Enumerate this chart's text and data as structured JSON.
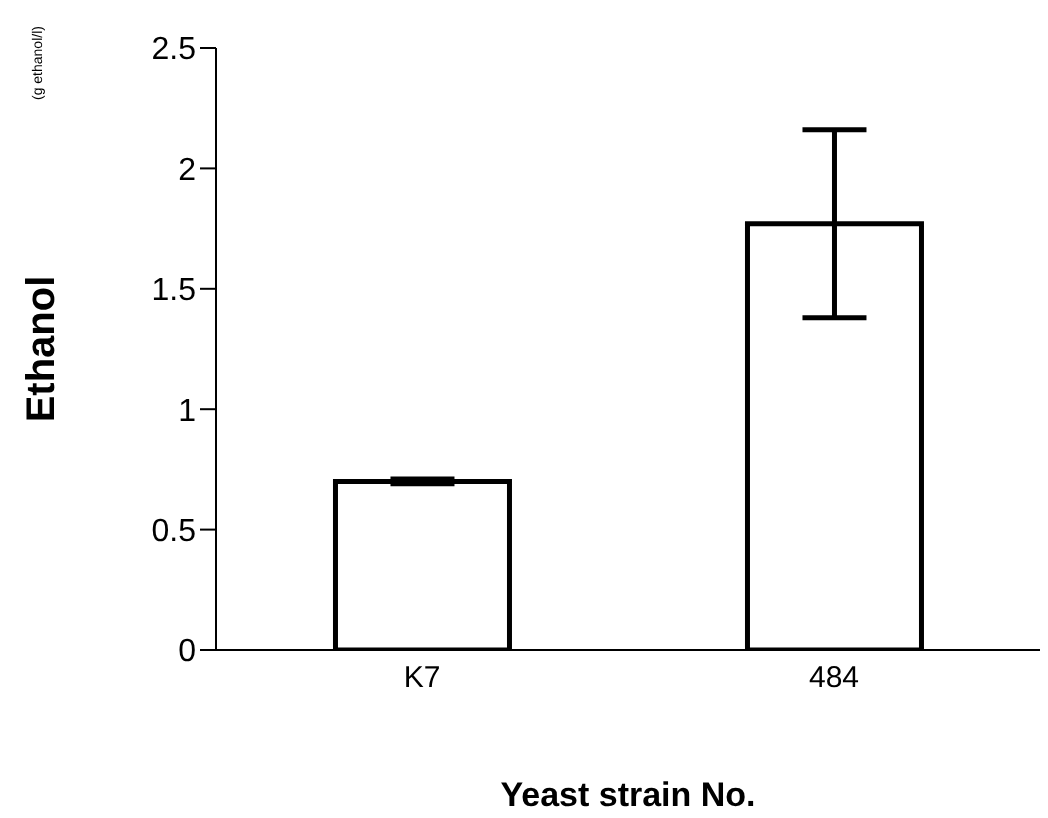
{
  "chart_data": {
    "type": "bar",
    "categories": [
      "K7",
      "484"
    ],
    "values": [
      0.7,
      1.77
    ],
    "errors": [
      0.01,
      0.39
    ],
    "color": "#ffffff",
    "xlabel": "Yeast strain No.",
    "ylabel": "Ethanol",
    "annotations": [
      "(g ethanol/l)"
    ],
    "ylim": [
      0,
      2.5
    ],
    "yticks": [
      0,
      0.5,
      1,
      1.5,
      2,
      2.5
    ],
    "grid": false,
    "legend": false
  }
}
